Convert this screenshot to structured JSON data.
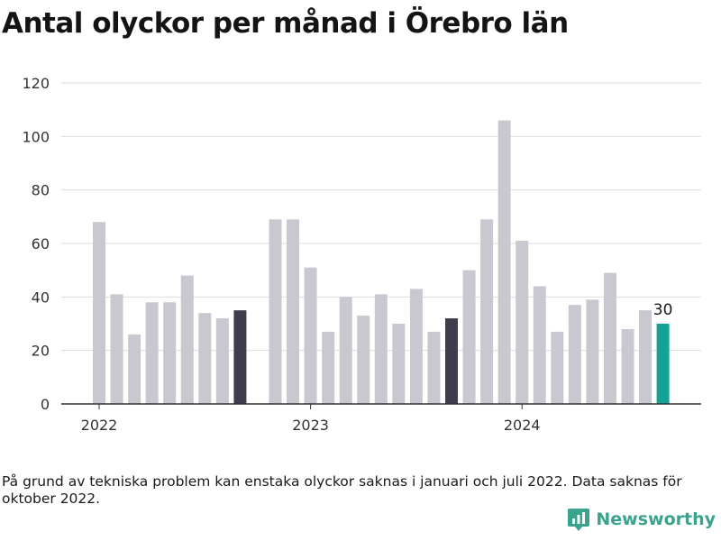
{
  "title": "Antal olyckor per månad i Örebro län",
  "note": "På grund av tekniska problem kan enstaka olyckor saknas i januari och juli 2022. Data saknas för oktober 2022.",
  "brand": {
    "name": "Newsworthy",
    "logo_icon": "newsworthy-logo-icon",
    "color": "#3aa38e"
  },
  "colors": {
    "default_bar": "#c8c8d0",
    "highlight_bar": "#3e3d4c",
    "latest_bar": "#14a296",
    "grid": "#dddddd",
    "axis": "#333333"
  },
  "chart_data": {
    "type": "bar",
    "title": "Antal olyckor per månad i Örebro län",
    "xlabel": "",
    "ylabel": "",
    "ylim": [
      0,
      120
    ],
    "y_ticks": [
      "0",
      "20",
      "40",
      "60",
      "80",
      "100",
      "120"
    ],
    "x_ticks": [
      "2022",
      "2023",
      "2024"
    ],
    "grid": true,
    "data_labels": [
      {
        "category": "2024-09",
        "text": "30"
      }
    ],
    "categories": [
      "2022-01",
      "2022-02",
      "2022-03",
      "2022-04",
      "2022-05",
      "2022-06",
      "2022-07",
      "2022-08",
      "2022-09",
      "2022-10",
      "2022-11",
      "2022-12",
      "2023-01",
      "2023-02",
      "2023-03",
      "2023-04",
      "2023-05",
      "2023-06",
      "2023-07",
      "2023-08",
      "2023-09",
      "2023-10",
      "2023-11",
      "2023-12",
      "2024-01",
      "2024-02",
      "2024-03",
      "2024-04",
      "2024-05",
      "2024-06",
      "2024-07",
      "2024-08",
      "2024-09"
    ],
    "values": [
      68,
      41,
      26,
      38,
      38,
      48,
      34,
      32,
      35,
      null,
      69,
      69,
      51,
      27,
      40,
      33,
      41,
      30,
      43,
      27,
      32,
      50,
      69,
      106,
      61,
      44,
      27,
      37,
      39,
      49,
      28,
      35,
      30
    ],
    "highlight": {
      "2022-09": "highlight_bar",
      "2023-09": "highlight_bar",
      "2024-09": "latest_bar"
    }
  }
}
